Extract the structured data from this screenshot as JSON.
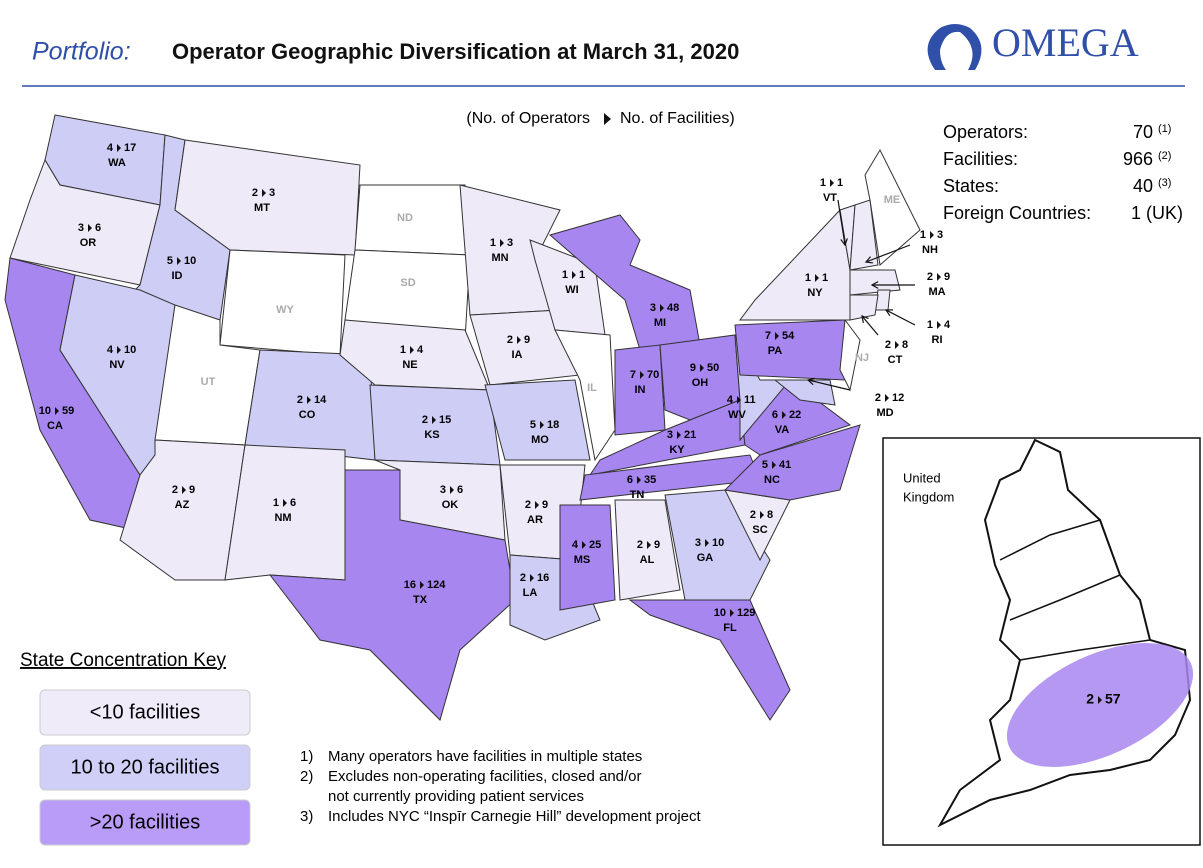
{
  "header": {
    "kicker": "Portfolio:",
    "title": "Operator Geographic Diversification at March 31, 2020",
    "logo": "OMEGA"
  },
  "subheader": {
    "left": "(No. of Operators",
    "right": "No. of Facilities)"
  },
  "stats": [
    {
      "label": "Operators:",
      "value": "70",
      "note": "(1)"
    },
    {
      "label": "Facilities:",
      "value": "966",
      "note": "(2)"
    },
    {
      "label": "States:",
      "value": "40",
      "note": "(3)"
    },
    {
      "label": "Foreign Countries:",
      "value": "1 (UK)"
    }
  ],
  "states": [
    {
      "abbr": "WA",
      "operators": 4,
      "facilities": 17,
      "color": "#cdcdf5"
    },
    {
      "abbr": "OR",
      "operators": 3,
      "facilities": 6,
      "color": "#efeaf8"
    },
    {
      "abbr": "CA",
      "operators": 10,
      "facilities": 59,
      "color": "#a886f0"
    },
    {
      "abbr": "ID",
      "operators": 5,
      "facilities": 10,
      "color": "#cdcdf5"
    },
    {
      "abbr": "NV",
      "operators": 4,
      "facilities": 10,
      "color": "#cdcdf5"
    },
    {
      "abbr": "MT",
      "operators": 2,
      "facilities": 3,
      "color": "#efeaf8"
    },
    {
      "abbr": "WY",
      "color": "#ffffff"
    },
    {
      "abbr": "UT",
      "color": "#ffffff"
    },
    {
      "abbr": "AZ",
      "operators": 2,
      "facilities": 9,
      "color": "#efeaf8"
    },
    {
      "abbr": "CO",
      "operators": 2,
      "facilities": 14,
      "color": "#cdcdf5"
    },
    {
      "abbr": "NM",
      "operators": 1,
      "facilities": 6,
      "color": "#efeaf8"
    },
    {
      "abbr": "ND",
      "color": "#ffffff"
    },
    {
      "abbr": "SD",
      "color": "#ffffff"
    },
    {
      "abbr": "NE",
      "operators": 1,
      "facilities": 4,
      "color": "#efeaf8"
    },
    {
      "abbr": "KS",
      "operators": 2,
      "facilities": 15,
      "color": "#cdcdf5"
    },
    {
      "abbr": "OK",
      "operators": 3,
      "facilities": 6,
      "color": "#efeaf8"
    },
    {
      "abbr": "TX",
      "operators": 16,
      "facilities": 124,
      "color": "#a886f0"
    },
    {
      "abbr": "MN",
      "operators": 1,
      "facilities": 3,
      "color": "#efeaf8"
    },
    {
      "abbr": "IA",
      "operators": 2,
      "facilities": 9,
      "color": "#efeaf8"
    },
    {
      "abbr": "MO",
      "operators": 5,
      "facilities": 18,
      "color": "#cdcdf5"
    },
    {
      "abbr": "AR",
      "operators": 2,
      "facilities": 9,
      "color": "#efeaf8"
    },
    {
      "abbr": "LA",
      "operators": 2,
      "facilities": 16,
      "color": "#cdcdf5"
    },
    {
      "abbr": "WI",
      "operators": 1,
      "facilities": 1,
      "color": "#efeaf8"
    },
    {
      "abbr": "IL",
      "color": "#ffffff"
    },
    {
      "abbr": "MI",
      "operators": 3,
      "facilities": 48,
      "color": "#a886f0"
    },
    {
      "abbr": "IN",
      "operators": 7,
      "facilities": 70,
      "color": "#a886f0"
    },
    {
      "abbr": "OH",
      "operators": 9,
      "facilities": 50,
      "color": "#a886f0"
    },
    {
      "abbr": "KY",
      "operators": 3,
      "facilities": 21,
      "color": "#a886f0"
    },
    {
      "abbr": "TN",
      "operators": 6,
      "facilities": 35,
      "color": "#a886f0"
    },
    {
      "abbr": "MS",
      "operators": 4,
      "facilities": 25,
      "color": "#a886f0"
    },
    {
      "abbr": "AL",
      "operators": 2,
      "facilities": 9,
      "color": "#efeaf8"
    },
    {
      "abbr": "GA",
      "operators": 3,
      "facilities": 10,
      "color": "#cdcdf5"
    },
    {
      "abbr": "FL",
      "operators": 10,
      "facilities": 129,
      "color": "#a886f0"
    },
    {
      "abbr": "SC",
      "operators": 2,
      "facilities": 8,
      "color": "#efeaf8"
    },
    {
      "abbr": "NC",
      "operators": 5,
      "facilities": 41,
      "color": "#a886f0"
    },
    {
      "abbr": "VA",
      "operators": 6,
      "facilities": 22,
      "color": "#a886f0"
    },
    {
      "abbr": "WV",
      "operators": 4,
      "facilities": 11,
      "color": "#cdcdf5"
    },
    {
      "abbr": "MD",
      "operators": 2,
      "facilities": 12,
      "color": "#cdcdf5"
    },
    {
      "abbr": "PA",
      "operators": 7,
      "facilities": 54,
      "color": "#a886f0"
    },
    {
      "abbr": "NJ",
      "color": "#ffffff"
    },
    {
      "abbr": "NY",
      "operators": 1,
      "facilities": 1,
      "color": "#efeaf8"
    },
    {
      "abbr": "VT",
      "operators": 1,
      "facilities": 1,
      "color": "#efeaf8"
    },
    {
      "abbr": "NH",
      "operators": 1,
      "facilities": 3,
      "color": "#efeaf8"
    },
    {
      "abbr": "ME",
      "color": "#ffffff"
    },
    {
      "abbr": "MA",
      "operators": 2,
      "facilities": 9,
      "color": "#efeaf8"
    },
    {
      "abbr": "RI",
      "operators": 1,
      "facilities": 4,
      "color": "#efeaf8"
    },
    {
      "abbr": "CT",
      "operators": 2,
      "facilities": 8,
      "color": "#efeaf8"
    }
  ],
  "key": {
    "title": "State Concentration Key",
    "items": [
      {
        "label": "<10 facilities",
        "color": "#efebf9"
      },
      {
        "label": "10 to 20 facilities",
        "color": "#cfcff7"
      },
      {
        "label": ">20 facilities",
        "color": "#b99cf7"
      }
    ]
  },
  "footnotes": [
    {
      "number": "1)",
      "lines": [
        "Many operators have facilities in multiple states"
      ]
    },
    {
      "number": "2)",
      "lines": [
        "Excludes non-operating facilities, closed and/or",
        "not currently providing patient services"
      ]
    },
    {
      "number": "3)",
      "lines": [
        "Includes NYC “Inspīr Carnegie Hill” development project"
      ]
    }
  ],
  "uk": {
    "name_lines": [
      "United",
      "Kingdom"
    ],
    "operators": 2,
    "facilities": 57,
    "color": "#a886f0"
  }
}
